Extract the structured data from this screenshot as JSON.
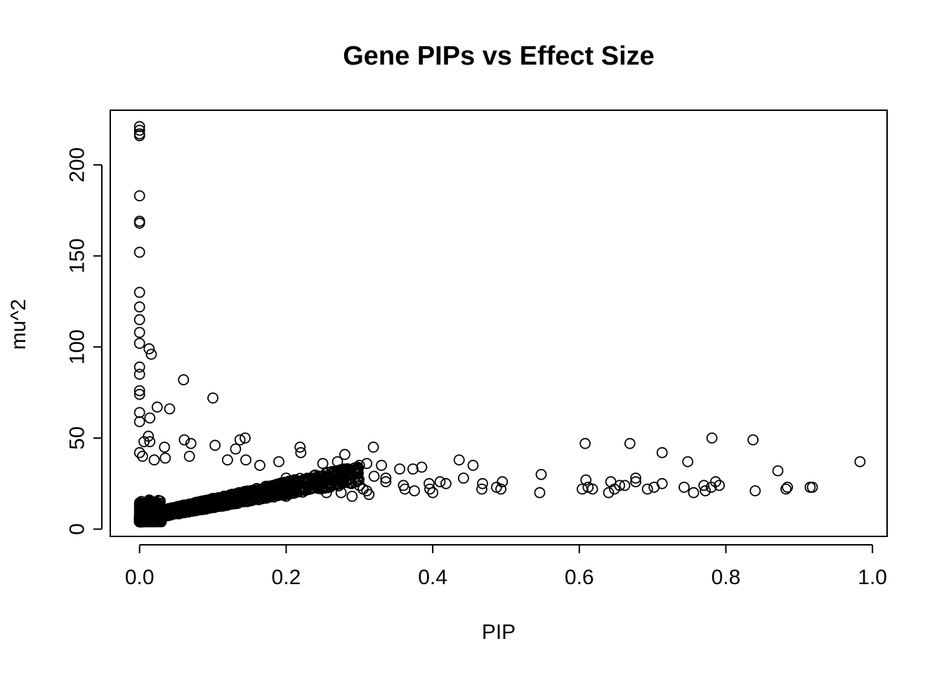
{
  "chart_data": {
    "type": "scatter",
    "title": "Gene PIPs vs Effect Size",
    "xlabel": "PIP",
    "ylabel": "mu^2",
    "xlim": [
      -0.04,
      1.02
    ],
    "ylim": [
      -4,
      230
    ],
    "x_ticks": [
      0.0,
      0.2,
      0.4,
      0.6,
      0.8,
      1.0
    ],
    "x_tick_labels": [
      "0.0",
      "0.2",
      "0.4",
      "0.6",
      "0.8",
      "1.0"
    ],
    "y_ticks": [
      0,
      50,
      100,
      150,
      200
    ],
    "y_tick_labels": [
      "0",
      "50",
      "100",
      "150",
      "200"
    ],
    "grid": false,
    "marker": "open-circle",
    "points": [
      {
        "x": 0.0,
        "y": 221
      },
      {
        "x": 0.0,
        "y": 219
      },
      {
        "x": 0.0,
        "y": 217
      },
      {
        "x": 0.0,
        "y": 216
      },
      {
        "x": 0.0,
        "y": 183
      },
      {
        "x": 0.0,
        "y": 169
      },
      {
        "x": 0.0,
        "y": 168
      },
      {
        "x": 0.0,
        "y": 152
      },
      {
        "x": 0.0,
        "y": 130
      },
      {
        "x": 0.0,
        "y": 122
      },
      {
        "x": 0.0,
        "y": 115
      },
      {
        "x": 0.0,
        "y": 108
      },
      {
        "x": 0.0,
        "y": 102
      },
      {
        "x": 0.0,
        "y": 89
      },
      {
        "x": 0.0,
        "y": 85
      },
      {
        "x": 0.0,
        "y": 76
      },
      {
        "x": 0.0,
        "y": 74
      },
      {
        "x": 0.0,
        "y": 64
      },
      {
        "x": 0.0,
        "y": 59
      },
      {
        "x": 0.013,
        "y": 99
      },
      {
        "x": 0.016,
        "y": 96
      },
      {
        "x": 0.06,
        "y": 82
      },
      {
        "x": 0.1,
        "y": 72
      },
      {
        "x": 0.024,
        "y": 67
      },
      {
        "x": 0.041,
        "y": 66
      },
      {
        "x": 0.014,
        "y": 61
      },
      {
        "x": 0.012,
        "y": 51
      },
      {
        "x": 0.014,
        "y": 48
      },
      {
        "x": 0.006,
        "y": 48
      },
      {
        "x": 0.061,
        "y": 49
      },
      {
        "x": 0.07,
        "y": 47
      },
      {
        "x": 0.103,
        "y": 46
      },
      {
        "x": 0.034,
        "y": 45
      },
      {
        "x": 0.137,
        "y": 49
      },
      {
        "x": 0.144,
        "y": 50
      },
      {
        "x": 0.131,
        "y": 44
      },
      {
        "x": 0.219,
        "y": 45
      },
      {
        "x": 0.22,
        "y": 42
      },
      {
        "x": 0.319,
        "y": 45
      },
      {
        "x": 0.28,
        "y": 41
      },
      {
        "x": 0.0,
        "y": 42
      },
      {
        "x": 0.004,
        "y": 40
      },
      {
        "x": 0.02,
        "y": 38
      },
      {
        "x": 0.035,
        "y": 39
      },
      {
        "x": 0.068,
        "y": 40
      },
      {
        "x": 0.12,
        "y": 38
      },
      {
        "x": 0.145,
        "y": 38
      },
      {
        "x": 0.164,
        "y": 35
      },
      {
        "x": 0.19,
        "y": 37
      },
      {
        "x": 0.25,
        "y": 36
      },
      {
        "x": 0.27,
        "y": 37
      },
      {
        "x": 0.3,
        "y": 35
      },
      {
        "x": 0.31,
        "y": 36
      },
      {
        "x": 0.33,
        "y": 35
      },
      {
        "x": 0.355,
        "y": 33
      },
      {
        "x": 0.373,
        "y": 33
      },
      {
        "x": 0.385,
        "y": 34
      },
      {
        "x": 0.436,
        "y": 38
      },
      {
        "x": 0.455,
        "y": 35
      },
      {
        "x": 0.442,
        "y": 28
      },
      {
        "x": 0.41,
        "y": 26
      },
      {
        "x": 0.418,
        "y": 25
      },
      {
        "x": 0.395,
        "y": 25
      },
      {
        "x": 0.396,
        "y": 22
      },
      {
        "x": 0.4,
        "y": 20
      },
      {
        "x": 0.36,
        "y": 24
      },
      {
        "x": 0.362,
        "y": 22
      },
      {
        "x": 0.375,
        "y": 21
      },
      {
        "x": 0.336,
        "y": 28
      },
      {
        "x": 0.336,
        "y": 26
      },
      {
        "x": 0.32,
        "y": 29
      },
      {
        "x": 0.31,
        "y": 21
      },
      {
        "x": 0.313,
        "y": 19
      },
      {
        "x": 0.3,
        "y": 24
      },
      {
        "x": 0.305,
        "y": 22
      },
      {
        "x": 0.29,
        "y": 18
      },
      {
        "x": 0.275,
        "y": 20
      },
      {
        "x": 0.255,
        "y": 20
      },
      {
        "x": 0.245,
        "y": 24
      },
      {
        "x": 0.23,
        "y": 23
      },
      {
        "x": 0.2,
        "y": 18
      },
      {
        "x": 0.19,
        "y": 19
      },
      {
        "x": 0.2,
        "y": 28
      },
      {
        "x": 0.468,
        "y": 25
      },
      {
        "x": 0.467,
        "y": 22
      },
      {
        "x": 0.487,
        "y": 23
      },
      {
        "x": 0.493,
        "y": 22
      },
      {
        "x": 0.495,
        "y": 26
      },
      {
        "x": 0.548,
        "y": 30
      },
      {
        "x": 0.546,
        "y": 20
      },
      {
        "x": 0.608,
        "y": 47
      },
      {
        "x": 0.609,
        "y": 27
      },
      {
        "x": 0.604,
        "y": 22
      },
      {
        "x": 0.612,
        "y": 23
      },
      {
        "x": 0.618,
        "y": 22
      },
      {
        "x": 0.64,
        "y": 20
      },
      {
        "x": 0.643,
        "y": 26
      },
      {
        "x": 0.648,
        "y": 22
      },
      {
        "x": 0.655,
        "y": 24
      },
      {
        "x": 0.662,
        "y": 24
      },
      {
        "x": 0.669,
        "y": 47
      },
      {
        "x": 0.677,
        "y": 28
      },
      {
        "x": 0.677,
        "y": 26
      },
      {
        "x": 0.693,
        "y": 22
      },
      {
        "x": 0.702,
        "y": 23
      },
      {
        "x": 0.713,
        "y": 42
      },
      {
        "x": 0.713,
        "y": 25
      },
      {
        "x": 0.743,
        "y": 23
      },
      {
        "x": 0.748,
        "y": 37
      },
      {
        "x": 0.756,
        "y": 20
      },
      {
        "x": 0.77,
        "y": 24
      },
      {
        "x": 0.772,
        "y": 21
      },
      {
        "x": 0.78,
        "y": 23
      },
      {
        "x": 0.781,
        "y": 50
      },
      {
        "x": 0.786,
        "y": 26
      },
      {
        "x": 0.791,
        "y": 24
      },
      {
        "x": 0.837,
        "y": 49
      },
      {
        "x": 0.84,
        "y": 21
      },
      {
        "x": 0.871,
        "y": 32
      },
      {
        "x": 0.882,
        "y": 22
      },
      {
        "x": 0.884,
        "y": 23
      },
      {
        "x": 0.915,
        "y": 23
      },
      {
        "x": 0.918,
        "y": 23
      },
      {
        "x": 0.983,
        "y": 37
      }
    ],
    "dense_cluster": {
      "description_shown": false,
      "x_range": [
        0.0,
        0.3
      ],
      "y_trend": "y ≈ 6 + 80·x",
      "count": 1600
    }
  }
}
